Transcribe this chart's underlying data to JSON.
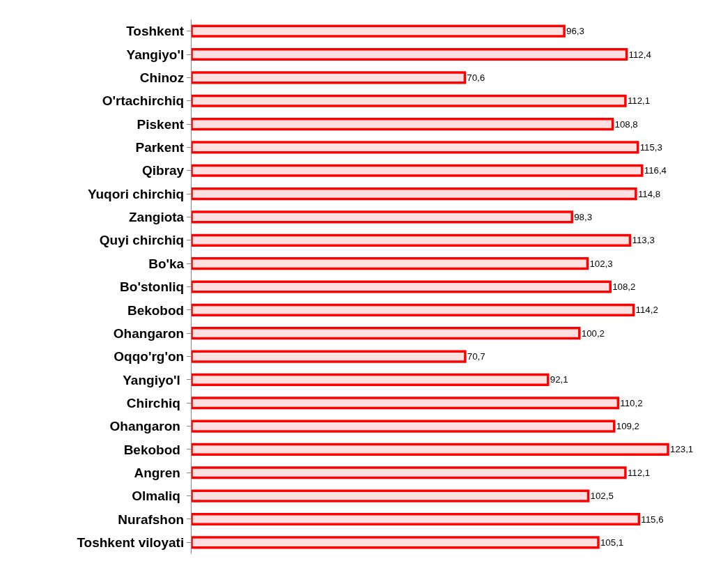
{
  "chart_data": {
    "type": "bar",
    "orientation": "horizontal",
    "categories": [
      "Toshkent",
      "Yangiyo'l",
      "Chinoz",
      "O'rtachirchiq",
      "Piskent",
      "Parkent",
      "Qibray",
      "Yuqori chirchiq",
      "Zangiota",
      "Quyi chirchiq",
      "Bo'ka",
      "Bo'stonliq",
      "Bekobod",
      "Ohangaron",
      "Oqqo'rg'on",
      "Yangiyo'l ",
      "Chirchiq ",
      "Ohangaron ",
      "Bekobod ",
      "Angren ",
      "Olmaliq ",
      "Nurafshon",
      "Toshkent viloyati"
    ],
    "values": [
      96.3,
      112.4,
      70.6,
      112.1,
      108.8,
      115.3,
      116.4,
      114.8,
      98.3,
      113.3,
      102.3,
      108.2,
      114.2,
      100.2,
      70.7,
      92.1,
      110.2,
      109.2,
      123.1,
      112.1,
      102.5,
      115.6,
      105.1
    ],
    "value_labels": [
      "96,3",
      "112,4",
      "70,6",
      "112,1",
      "108,8",
      "115,3",
      "116,4",
      "114,8",
      "98,3",
      "113,3",
      "102,3",
      "108,2",
      "114,2",
      "100,2",
      "70,7",
      "92,1",
      "110,2",
      "109,2",
      "123,1",
      "112,1",
      "102,5",
      "115,6",
      "105,1"
    ],
    "color": "#ff0000",
    "tick_labels": "y"
  }
}
